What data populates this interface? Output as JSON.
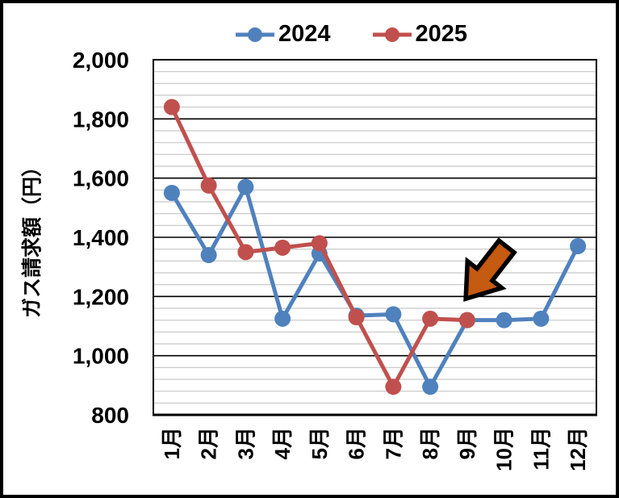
{
  "chart_data": {
    "type": "line",
    "title": "",
    "categories": [
      "1月",
      "2月",
      "3月",
      "4月",
      "5月",
      "6月",
      "7月",
      "8月",
      "9月",
      "10月",
      "11月",
      "12月"
    ],
    "series": [
      {
        "name": "2024",
        "color": "#4F81BD",
        "values": [
          1550,
          1340,
          1570,
          1125,
          1345,
          1135,
          1140,
          895,
          1120,
          1120,
          1125,
          1370
        ]
      },
      {
        "name": "2025",
        "color": "#C0504D",
        "values": [
          1840,
          1575,
          1350,
          1365,
          1380,
          1130,
          895,
          1125,
          1120,
          null,
          null,
          null
        ]
      }
    ],
    "xlabel": "",
    "ylabel": "ガス請求額（円）",
    "ylim": [
      800,
      2000
    ],
    "y_major_interval": 200,
    "y_minor_interval": 40,
    "yticks": [
      {
        "value": 2000,
        "label": "2,000"
      },
      {
        "value": 1800,
        "label": "1,800"
      },
      {
        "value": 1600,
        "label": "1,600"
      },
      {
        "value": 1400,
        "label": "1,400"
      },
      {
        "value": 1200,
        "label": "1,200"
      },
      {
        "value": 1000,
        "label": "1,000"
      },
      {
        "value": 800,
        "label": "800"
      }
    ],
    "grid": {
      "major_color": "#000000",
      "minor_color": "#C6C6C6",
      "minor_on": true
    },
    "legend_position": "top",
    "annotation": {
      "shape": "block-arrow",
      "direction": "down-left",
      "fill": "#C55A11",
      "outline": "#000000",
      "points_at_series": "2025",
      "points_at_category": "9月"
    }
  }
}
